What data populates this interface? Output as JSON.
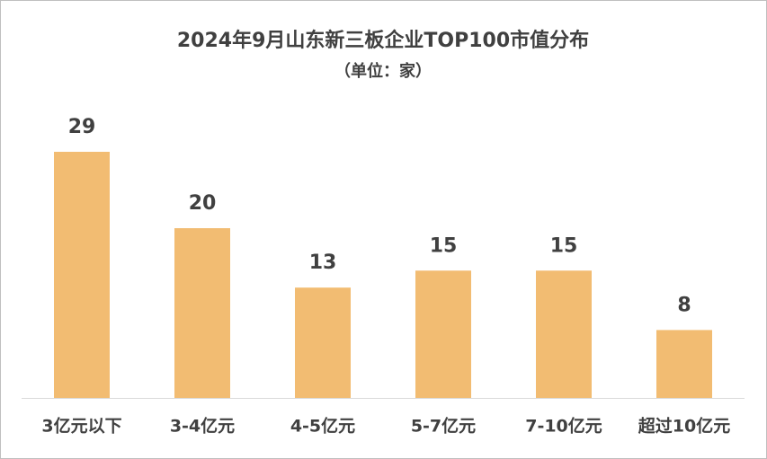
{
  "chart_data": {
    "type": "bar",
    "title": "2024年9月山东新三板企业TOP100市值分布",
    "subtitle": "（单位：家）",
    "categories": [
      "3亿元以下",
      "3-4亿元",
      "4-5亿元",
      "5-7亿元",
      "7-10亿元",
      "超过10亿元"
    ],
    "values": [
      29,
      20,
      13,
      15,
      15,
      8
    ],
    "color": "#f2bc72"
  }
}
